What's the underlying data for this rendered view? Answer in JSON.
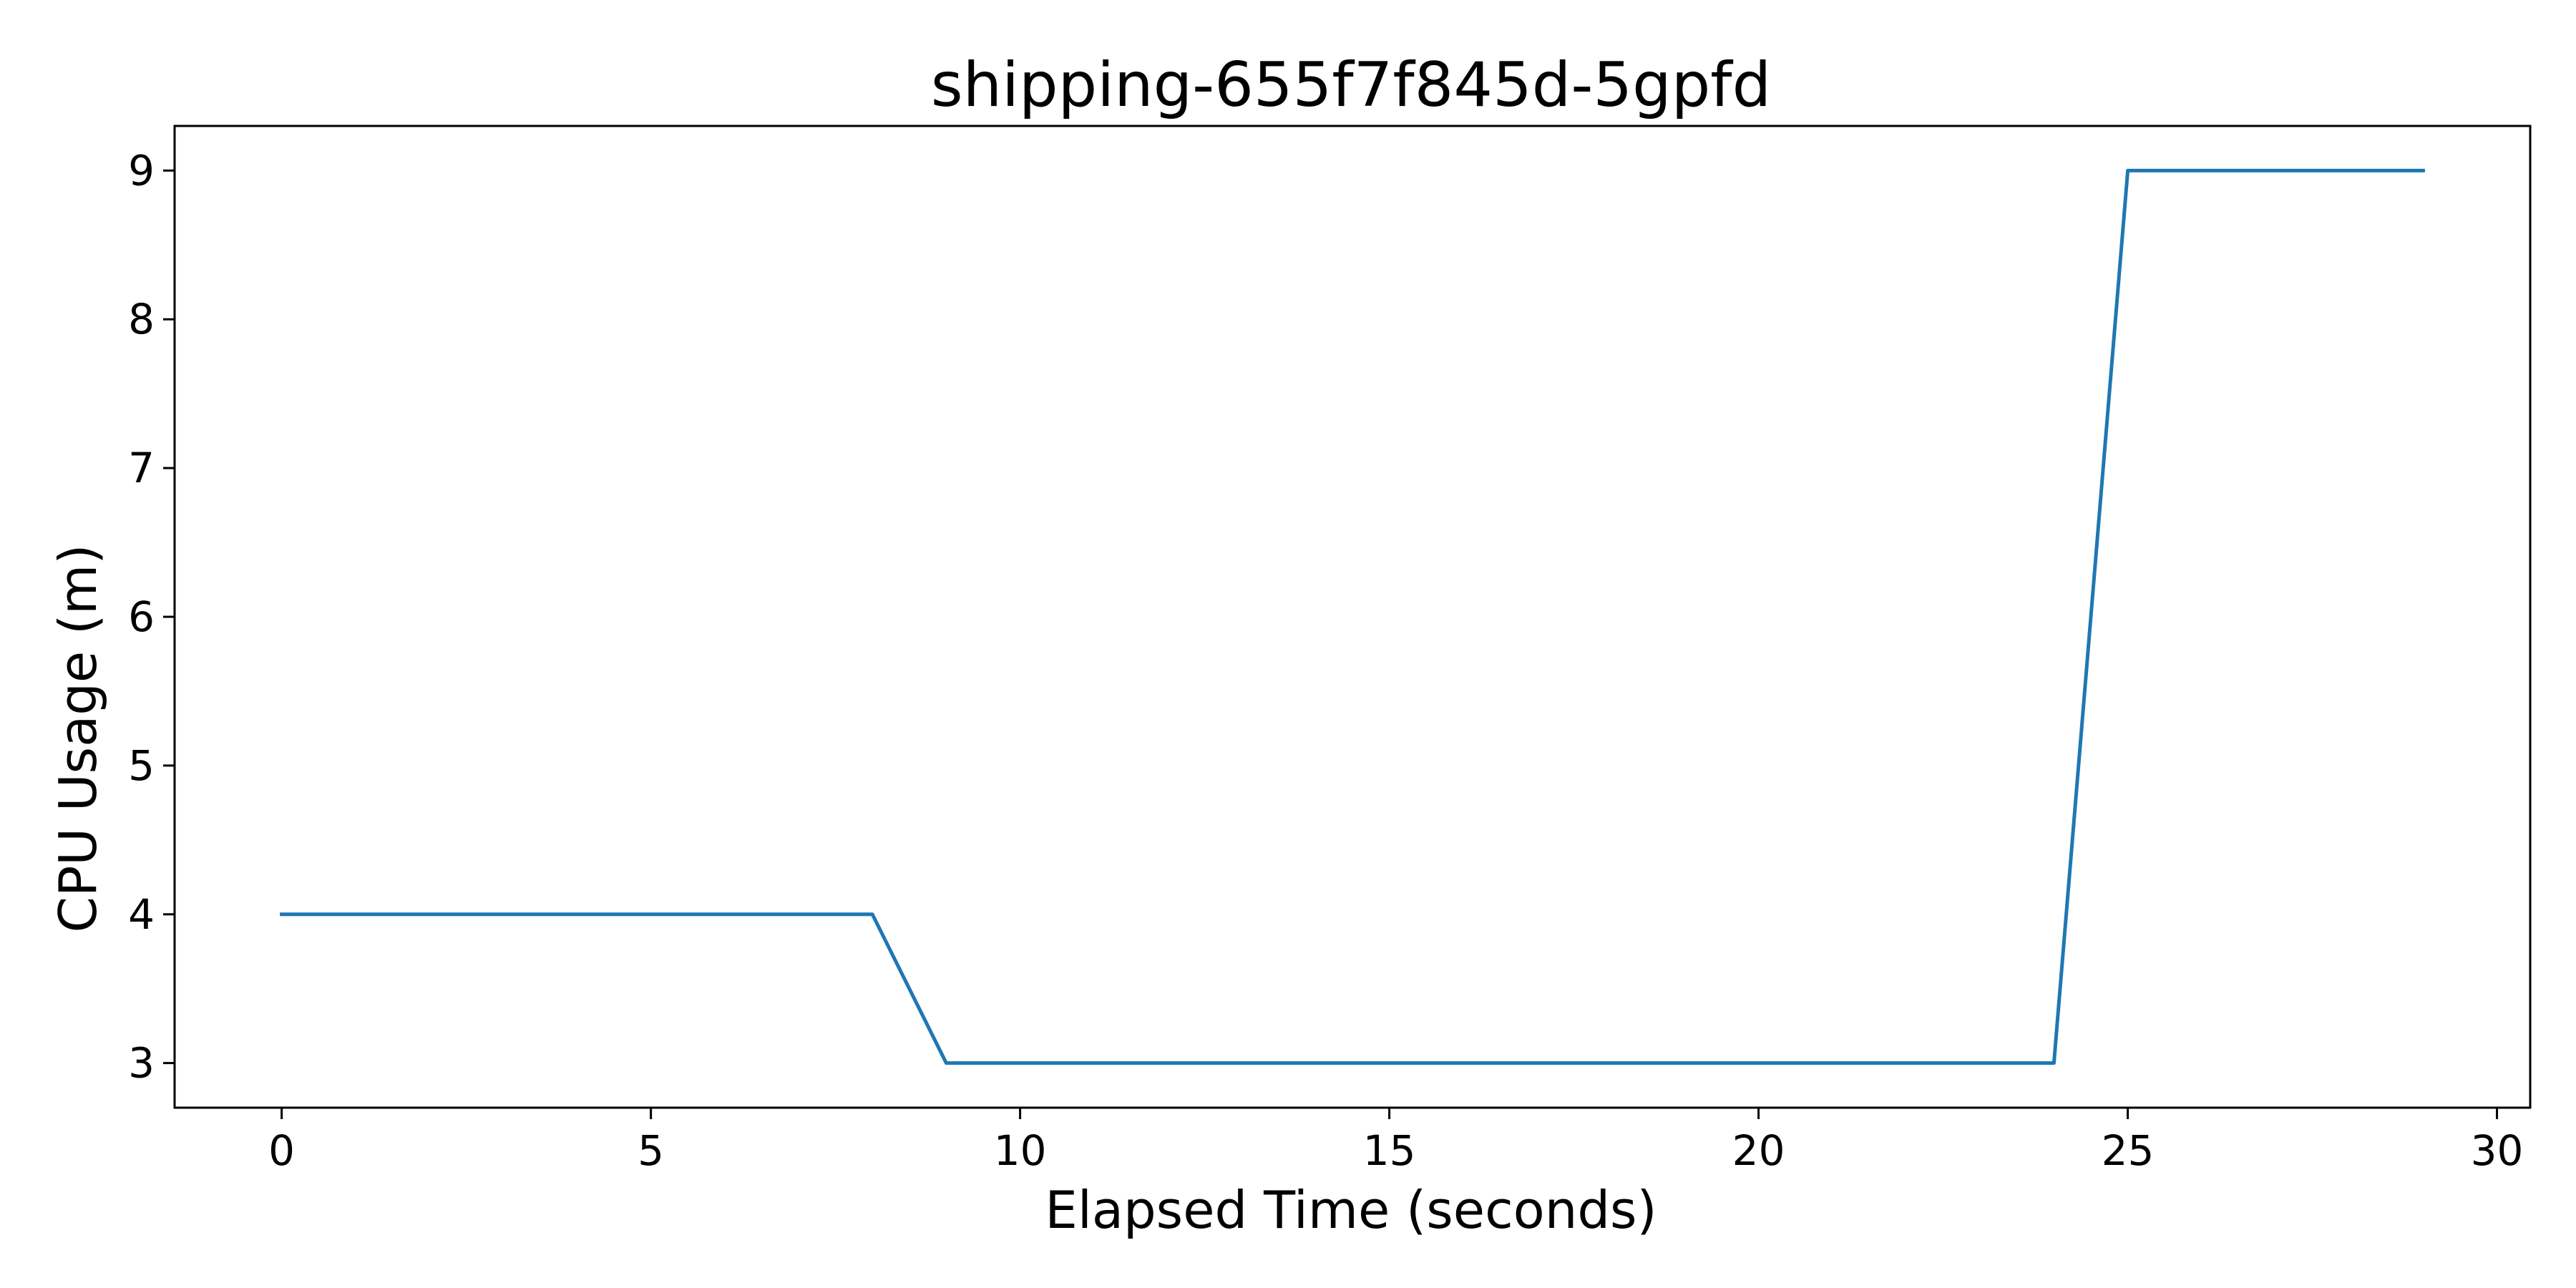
{
  "chart_data": {
    "type": "line",
    "title": "shipping-655f7f845d-5gpfd",
    "xlabel": "Elapsed Time (seconds)",
    "ylabel": "CPU Usage (m)",
    "xlim": [
      -1.45,
      30.45
    ],
    "ylim": [
      2.7,
      9.3
    ],
    "xticks": [
      0,
      5,
      10,
      15,
      20,
      25,
      30
    ],
    "yticks": [
      3,
      4,
      5,
      6,
      7,
      8,
      9
    ],
    "grid": false,
    "legend": "none",
    "series": [
      {
        "color": "#1f77b4",
        "x": [
          0,
          1,
          2,
          3,
          4,
          5,
          6,
          7,
          8,
          9,
          10,
          11,
          12,
          13,
          14,
          15,
          16,
          17,
          18,
          19,
          20,
          21,
          22,
          23,
          24,
          25,
          26,
          27,
          28,
          29
        ],
        "y": [
          4,
          4,
          4,
          4,
          4,
          4,
          4,
          4,
          4,
          3,
          3,
          3,
          3,
          3,
          3,
          3,
          3,
          3,
          3,
          3,
          3,
          3,
          3,
          3,
          3,
          9,
          9,
          9,
          9,
          9
        ]
      }
    ]
  }
}
